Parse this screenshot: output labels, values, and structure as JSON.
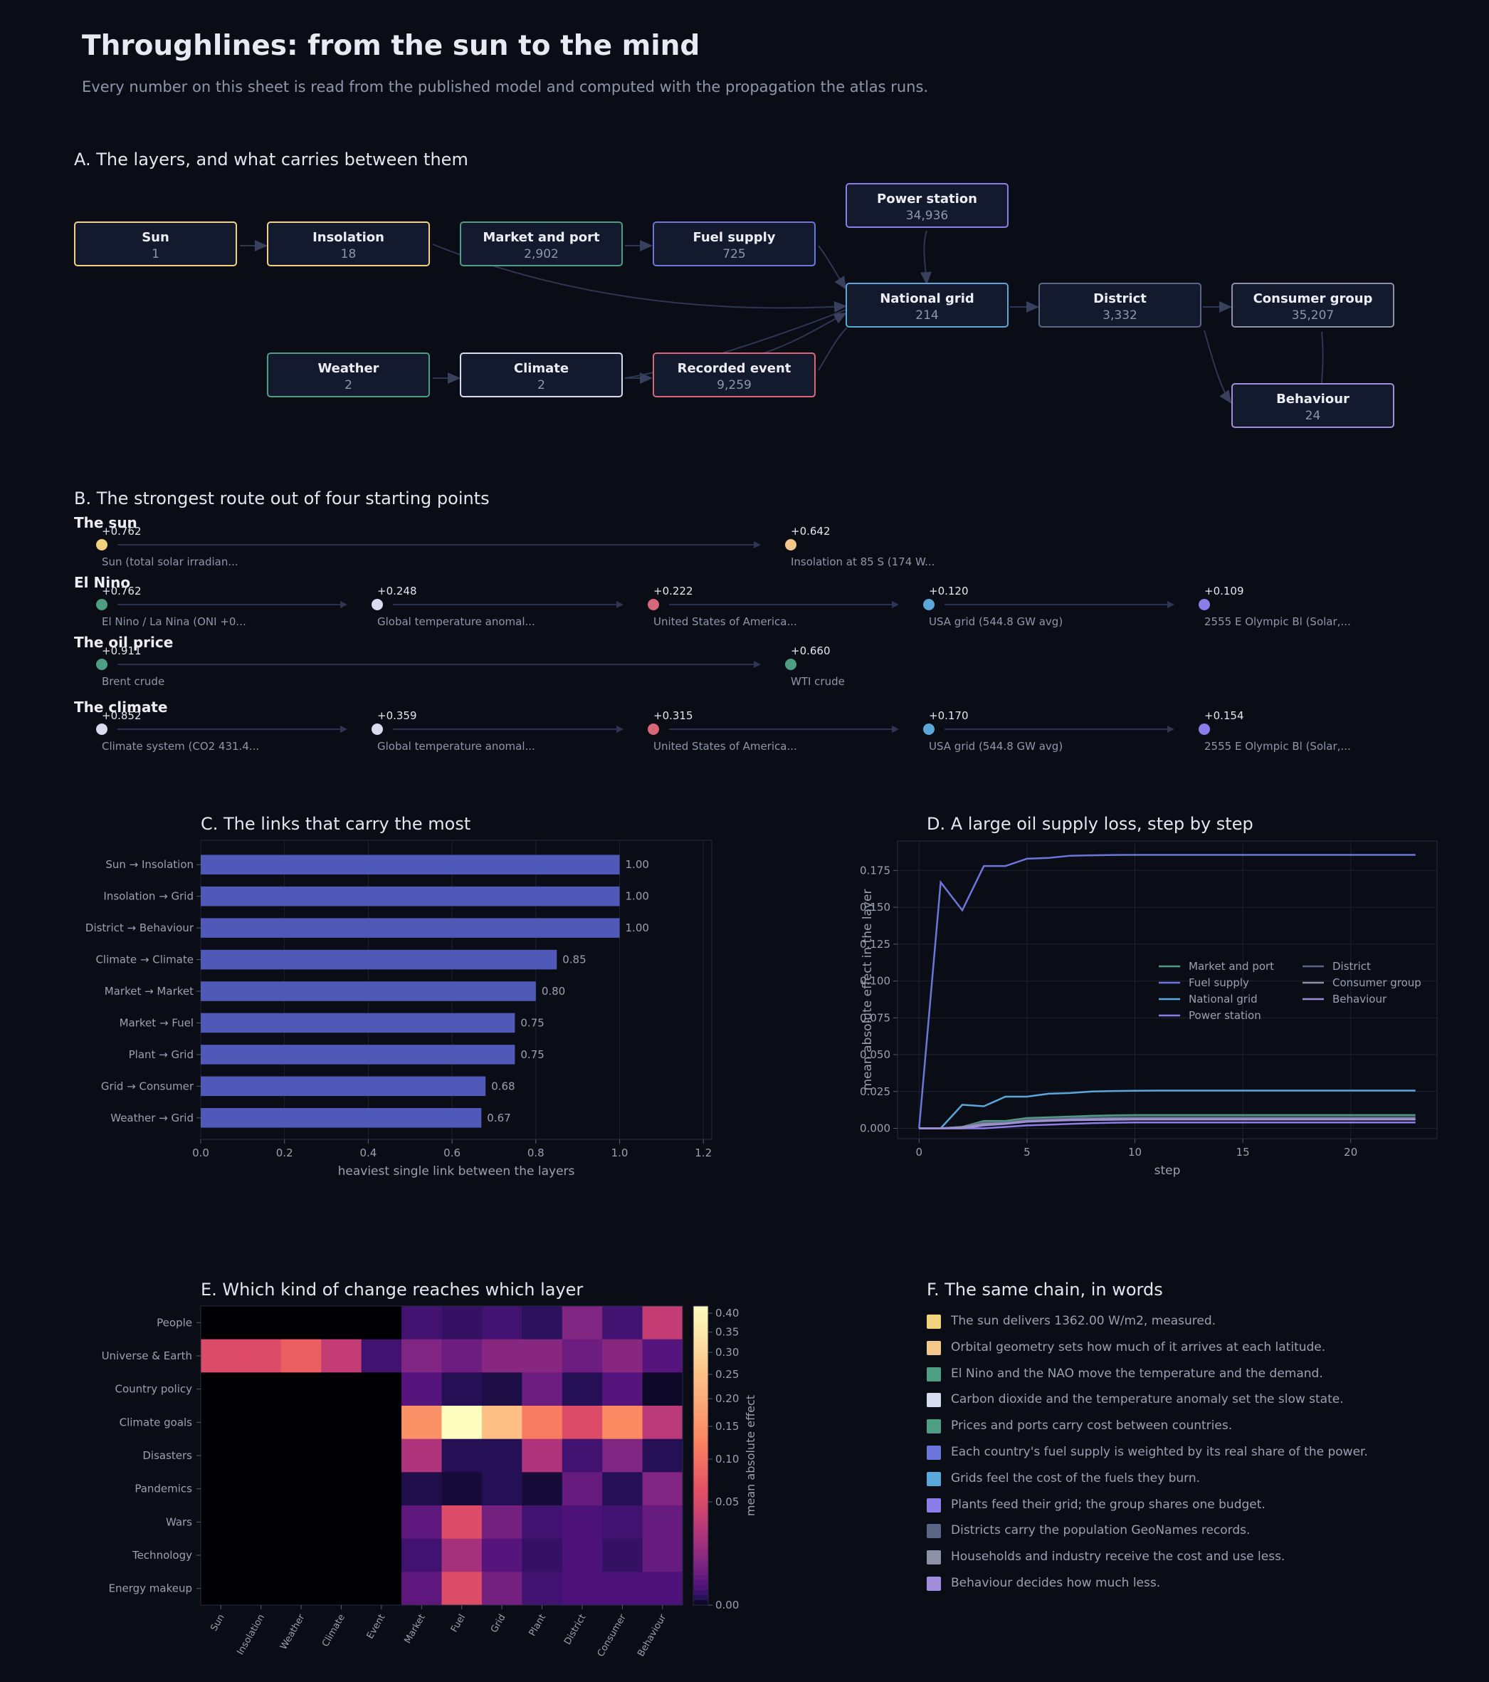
{
  "header": {
    "title": "Throughlines: from the sun to the mind",
    "subtitle": "Every number on this sheet is read from the published model and computed with the propagation the atlas runs."
  },
  "section_a": {
    "title": "A.  The layers, and what carries between them",
    "nodes": [
      {
        "id": "sun",
        "label": "Sun",
        "count": "1",
        "color": "#f2d27a"
      },
      {
        "id": "insolation",
        "label": "Insolation",
        "count": "18",
        "color": "#f2d27a"
      },
      {
        "id": "market",
        "label": "Market and port",
        "count": "2,902",
        "color": "#4e9e83"
      },
      {
        "id": "fuel",
        "label": "Fuel supply",
        "count": "725",
        "color": "#6c75d9"
      },
      {
        "id": "power",
        "label": "Power station",
        "count": "34,936",
        "color": "#8a7fe8"
      },
      {
        "id": "grid",
        "label": "National grid",
        "count": "214",
        "color": "#5aa7d9"
      },
      {
        "id": "district",
        "label": "District",
        "count": "3,332",
        "color": "#5b6687"
      },
      {
        "id": "consumer",
        "label": "Consumer group",
        "count": "35,207",
        "color": "#8c92a8"
      },
      {
        "id": "weather",
        "label": "Weather",
        "count": "2",
        "color": "#4e9e83"
      },
      {
        "id": "climate",
        "label": "Climate",
        "count": "2",
        "color": "#d8dcf0"
      },
      {
        "id": "event",
        "label": "Recorded event",
        "count": "9,259",
        "color": "#d9677a"
      },
      {
        "id": "behaviour",
        "label": "Behaviour",
        "count": "24",
        "color": "#a08fd8"
      }
    ]
  },
  "section_b": {
    "title": "B.  The strongest route out of four starting points",
    "routes": [
      {
        "label": "The sun",
        "steps": [
          {
            "value": "+0.762",
            "name": "Sun (total solar irradian...",
            "color": "#f2d27a"
          },
          {
            "value": "+0.642",
            "name": "Insolation at 85 S (174 W...",
            "color": "#f2c98a"
          }
        ]
      },
      {
        "label": "El Nino",
        "steps": [
          {
            "value": "+0.762",
            "name": "El Nino / La Nina (ONI +0...",
            "color": "#4e9e83"
          },
          {
            "value": "+0.248",
            "name": "Global temperature anomal...",
            "color": "#d8dcf0"
          },
          {
            "value": "+0.222",
            "name": "United States of America...",
            "color": "#d9677a"
          },
          {
            "value": "+0.120",
            "name": "USA grid (544.8 GW avg)",
            "color": "#5aa7d9"
          },
          {
            "value": "+0.109",
            "name": "2555 E Olympic Bl (Solar,...",
            "color": "#8a7fe8"
          }
        ]
      },
      {
        "label": "The oil price",
        "steps": [
          {
            "value": "+0.911",
            "name": "Brent crude",
            "color": "#4e9e83"
          },
          {
            "value": "+0.660",
            "name": "WTI crude",
            "color": "#4e9e83"
          }
        ]
      },
      {
        "label": "The climate",
        "steps": [
          {
            "value": "+0.852",
            "name": "Climate system (CO2 431.4...",
            "color": "#d8dcf0"
          },
          {
            "value": "+0.359",
            "name": "Global temperature anomal...",
            "color": "#d8dcf0"
          },
          {
            "value": "+0.315",
            "name": "United States of America...",
            "color": "#d9677a"
          },
          {
            "value": "+0.170",
            "name": "USA grid (544.8 GW avg)",
            "color": "#5aa7d9"
          },
          {
            "value": "+0.154",
            "name": "2555 E Olympic Bl (Solar,...",
            "color": "#8a7fe8"
          }
        ]
      }
    ]
  },
  "section_c": {
    "title": "C.  The links that carry the most"
  },
  "section_d": {
    "title": "D.  A large oil supply loss, step by step"
  },
  "section_e": {
    "title": "E.  Which kind of change reaches which layer"
  },
  "section_f": {
    "title": "F.  The same chain, in words",
    "items": [
      {
        "text": "The sun delivers 1362.00 W/m2, measured.",
        "color": "#f2d27a"
      },
      {
        "text": "Orbital geometry sets how much of it arrives at each latitude.",
        "color": "#f2c98a"
      },
      {
        "text": "El Nino and the NAO move the temperature and the demand.",
        "color": "#4e9e83"
      },
      {
        "text": "Carbon dioxide and the temperature anomaly set the slow state.",
        "color": "#d8dcf0"
      },
      {
        "text": "Prices and ports carry cost between countries.",
        "color": "#4e9e83"
      },
      {
        "text": "Each country's fuel supply is weighted by its real share of the power.",
        "color": "#6c75d9"
      },
      {
        "text": "Grids feel the cost of the fuels they burn.",
        "color": "#5aa7d9"
      },
      {
        "text": "Plants feed their grid; the group shares one budget.",
        "color": "#8a7fe8"
      },
      {
        "text": "Districts carry the population GeoNames records.",
        "color": "#5b6687"
      },
      {
        "text": "Households and industry receive the cost and use less.",
        "color": "#8c92a8"
      },
      {
        "text": "Behaviour decides how much less.",
        "color": "#a08fd8"
      }
    ]
  },
  "chart_data": [
    {
      "type": "bar",
      "orientation": "horizontal",
      "title": "C.  The links that carry the most",
      "categories": [
        "Sun → Insolation",
        "Insolation → Grid",
        "District → Behaviour",
        "Climate → Climate",
        "Market → Market",
        "Market → Fuel",
        "Plant → Grid",
        "Grid → Consumer",
        "Weather → Grid"
      ],
      "values": [
        1.0,
        1.0,
        1.0,
        0.85,
        0.8,
        0.75,
        0.75,
        0.68,
        0.67
      ],
      "value_labels": [
        "1.00",
        "1.00",
        "1.00",
        "0.85",
        "0.80",
        "0.75",
        "0.75",
        "0.68",
        "0.67"
      ],
      "xlabel": "heaviest single link between the layers",
      "xlim": [
        0,
        1.22
      ],
      "xticks": [
        "0.0",
        "0.2",
        "0.4",
        "0.6",
        "0.8",
        "1.0",
        "1.2"
      ],
      "color": "#5058b8",
      "grid": true
    },
    {
      "type": "line",
      "title": "D.  A large oil supply loss, step by step",
      "xlabel": "step",
      "ylabel": "mean absolute effect in the layer",
      "xlim": [
        -1,
        24
      ],
      "ylim": [
        -0.007,
        0.195
      ],
      "xticks": [
        "0",
        "5",
        "10",
        "15",
        "20"
      ],
      "yticks": [
        "0.000",
        "0.025",
        "0.050",
        "0.075",
        "0.100",
        "0.125",
        "0.150",
        "0.175"
      ],
      "legend_position": "center-right",
      "grid": true,
      "x": [
        0,
        1,
        2,
        3,
        4,
        5,
        6,
        7,
        8,
        9,
        10,
        11,
        12,
        13,
        14,
        15,
        16,
        17,
        18,
        19,
        20,
        21,
        22,
        23
      ],
      "series": [
        {
          "name": "Market and port",
          "color": "#4e9e83",
          "values": [
            0,
            0,
            0.001,
            0.005,
            0.005,
            0.007,
            0.0075,
            0.008,
            0.0085,
            0.0088,
            0.009,
            0.009,
            0.009,
            0.009,
            0.009,
            0.009,
            0.009,
            0.009,
            0.009,
            0.009,
            0.009,
            0.009,
            0.009,
            0.009
          ]
        },
        {
          "name": "Fuel supply",
          "color": "#6c75d9",
          "values": [
            0,
            0.167,
            0.148,
            0.178,
            0.178,
            0.183,
            0.1835,
            0.185,
            0.1853,
            0.1855,
            0.1856,
            0.1856,
            0.1856,
            0.1856,
            0.1856,
            0.1856,
            0.1856,
            0.1856,
            0.1856,
            0.1856,
            0.1856,
            0.1856,
            0.1856,
            0.1856
          ]
        },
        {
          "name": "National grid",
          "color": "#5aa7d9",
          "values": [
            0,
            0,
            0.016,
            0.015,
            0.0215,
            0.0215,
            0.0235,
            0.024,
            0.025,
            0.0253,
            0.0255,
            0.0256,
            0.0256,
            0.0256,
            0.0256,
            0.0256,
            0.0256,
            0.0256,
            0.0256,
            0.0256,
            0.0256,
            0.0256,
            0.0256,
            0.0256
          ]
        },
        {
          "name": "Power station",
          "color": "#8a7fe8",
          "values": [
            0,
            0,
            0,
            0,
            0.001,
            0.002,
            0.0025,
            0.003,
            0.0035,
            0.0038,
            0.004,
            0.004,
            0.004,
            0.004,
            0.004,
            0.004,
            0.004,
            0.004,
            0.004,
            0.004,
            0.004,
            0.004,
            0.004,
            0.004
          ]
        },
        {
          "name": "District",
          "color": "#5b6687",
          "values": [
            0,
            0,
            0.001,
            0.004,
            0.004,
            0.006,
            0.0065,
            0.007,
            0.0072,
            0.0074,
            0.0075,
            0.0075,
            0.0075,
            0.0075,
            0.0075,
            0.0075,
            0.0075,
            0.0075,
            0.0075,
            0.0075,
            0.0075,
            0.0075,
            0.0075,
            0.0075
          ]
        },
        {
          "name": "Consumer group",
          "color": "#8c92a8",
          "values": [
            0,
            0,
            0.001,
            0.003,
            0.0035,
            0.005,
            0.0055,
            0.006,
            0.0062,
            0.0064,
            0.0065,
            0.0065,
            0.0065,
            0.0065,
            0.0065,
            0.0065,
            0.0065,
            0.0065,
            0.0065,
            0.0065,
            0.0065,
            0.0065,
            0.0065,
            0.0065
          ]
        },
        {
          "name": "Behaviour",
          "color": "#a08fd8",
          "values": [
            0,
            0,
            0,
            0.002,
            0.003,
            0.0045,
            0.005,
            0.0055,
            0.0057,
            0.0058,
            0.006,
            0.006,
            0.006,
            0.006,
            0.006,
            0.006,
            0.006,
            0.006,
            0.006,
            0.006,
            0.006,
            0.006,
            0.006,
            0.006
          ]
        }
      ]
    },
    {
      "type": "heatmap",
      "title": "E.  Which kind of change reaches which layer",
      "rows": [
        "People",
        "Universe & Earth",
        "Country policy",
        "Climate goals",
        "Disasters",
        "Pandemics",
        "Wars",
        "Technology",
        "Energy makeup"
      ],
      "columns": [
        "Sun",
        "Insolation",
        "Weather",
        "Climate",
        "Event",
        "Market",
        "Fuel",
        "Grid",
        "Plant",
        "District",
        "Consumer",
        "Behaviour"
      ],
      "values": [
        [
          0,
          0,
          0,
          0,
          0,
          0.02,
          0.015,
          0.02,
          0.012,
          0.06,
          0.02,
          0.12
        ],
        [
          0.15,
          0.15,
          0.18,
          0.12,
          0.02,
          0.06,
          0.045,
          0.065,
          0.065,
          0.045,
          0.065,
          0.03
        ],
        [
          0,
          0,
          0,
          0,
          0,
          0.03,
          0.01,
          0.007,
          0.045,
          0.01,
          0.03,
          0.003
        ],
        [
          0,
          0,
          0,
          0,
          0,
          0.25,
          0.42,
          0.32,
          0.22,
          0.15,
          0.24,
          0.11
        ],
        [
          0,
          0,
          0,
          0,
          0,
          0.1,
          0.01,
          0.01,
          0.1,
          0.02,
          0.06,
          0.01
        ],
        [
          0,
          0,
          0,
          0,
          0,
          0.008,
          0.005,
          0.01,
          0.005,
          0.04,
          0.01,
          0.06
        ],
        [
          0,
          0,
          0,
          0,
          0,
          0.035,
          0.15,
          0.05,
          0.02,
          0.025,
          0.02,
          0.04
        ],
        [
          0,
          0,
          0,
          0,
          0,
          0.02,
          0.09,
          0.03,
          0.015,
          0.025,
          0.015,
          0.04
        ],
        [
          0,
          0,
          0,
          0,
          0,
          0.035,
          0.15,
          0.05,
          0.02,
          0.025,
          0.025,
          0.025
        ]
      ],
      "colorbar_label": "mean absolute effect",
      "colorbar_range": [
        0,
        0.42
      ],
      "colorbar_ticks": [
        "0.00",
        "0.05",
        "0.10",
        "0.15",
        "0.20",
        "0.25",
        "0.30",
        "0.35",
        "0.40"
      ],
      "colormap": "magma"
    }
  ]
}
